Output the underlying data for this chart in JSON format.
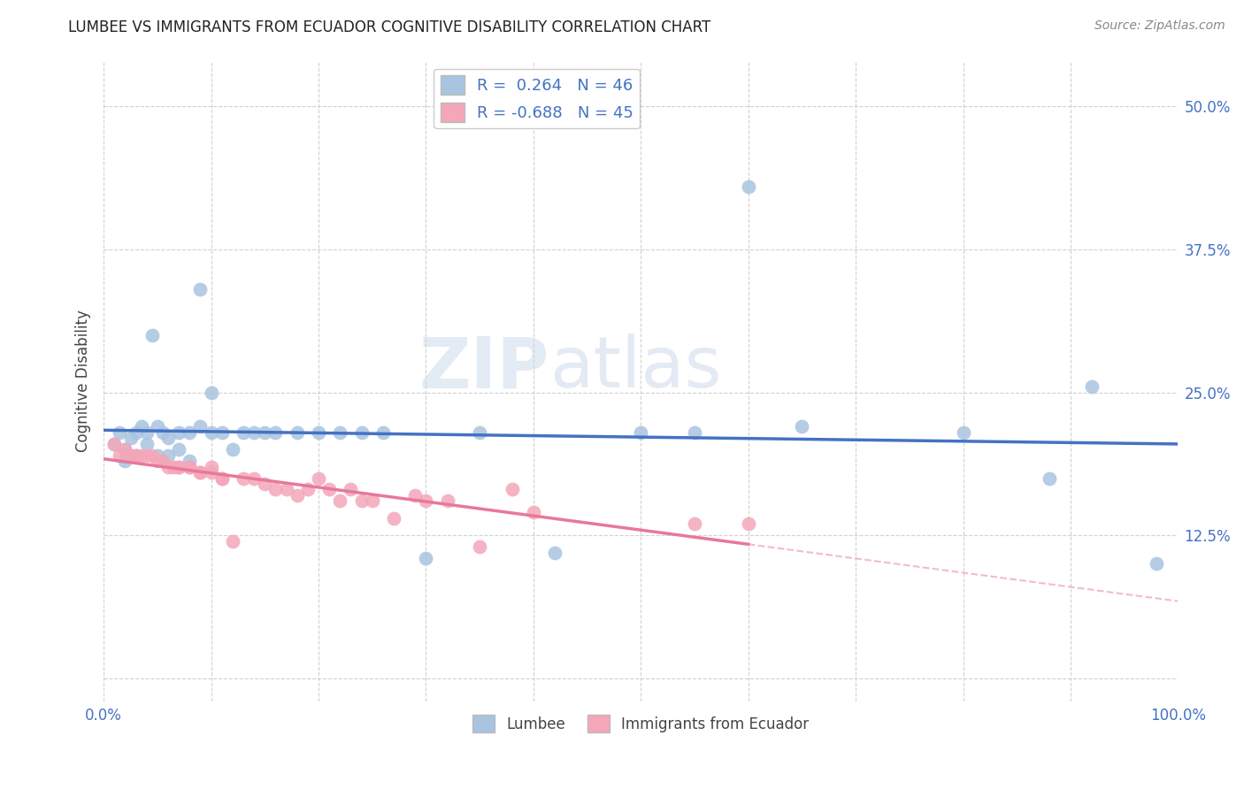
{
  "title": "LUMBEE VS IMMIGRANTS FROM ECUADOR COGNITIVE DISABILITY CORRELATION CHART",
  "source": "Source: ZipAtlas.com",
  "ylabel": "Cognitive Disability",
  "xlim": [
    0,
    1.0
  ],
  "ylim": [
    -0.02,
    0.54
  ],
  "yticks": [
    0.0,
    0.125,
    0.25,
    0.375,
    0.5
  ],
  "ytick_labels": [
    "",
    "12.5%",
    "25.0%",
    "37.5%",
    "50.0%"
  ],
  "xticks": [
    0.0,
    0.1,
    0.2,
    0.3,
    0.4,
    0.5,
    0.6,
    0.7,
    0.8,
    0.9,
    1.0
  ],
  "xtick_labels": [
    "0.0%",
    "",
    "",
    "",
    "",
    "",
    "",
    "",
    "",
    "",
    "100.0%"
  ],
  "lumbee_R": 0.264,
  "lumbee_N": 46,
  "ecuador_R": -0.688,
  "ecuador_N": 45,
  "lumbee_color": "#a8c4e0",
  "ecuador_color": "#f4a7b9",
  "lumbee_line_color": "#4472c4",
  "ecuador_line_color": "#e8789a",
  "watermark_zip": "ZIP",
  "watermark_atlas": "atlas",
  "lumbee_x": [
    0.01,
    0.015,
    0.02,
    0.02,
    0.025,
    0.03,
    0.03,
    0.035,
    0.04,
    0.04,
    0.045,
    0.05,
    0.05,
    0.055,
    0.06,
    0.06,
    0.07,
    0.07,
    0.08,
    0.08,
    0.09,
    0.09,
    0.1,
    0.1,
    0.11,
    0.12,
    0.13,
    0.14,
    0.15,
    0.16,
    0.18,
    0.2,
    0.22,
    0.24,
    0.26,
    0.3,
    0.35,
    0.42,
    0.5,
    0.55,
    0.6,
    0.65,
    0.8,
    0.88,
    0.92,
    0.98
  ],
  "lumbee_y": [
    0.205,
    0.215,
    0.2,
    0.19,
    0.21,
    0.215,
    0.195,
    0.22,
    0.215,
    0.205,
    0.3,
    0.195,
    0.22,
    0.215,
    0.21,
    0.195,
    0.215,
    0.2,
    0.19,
    0.215,
    0.34,
    0.22,
    0.215,
    0.25,
    0.215,
    0.2,
    0.215,
    0.215,
    0.215,
    0.215,
    0.215,
    0.215,
    0.215,
    0.215,
    0.215,
    0.105,
    0.215,
    0.11,
    0.215,
    0.215,
    0.43,
    0.22,
    0.215,
    0.175,
    0.255,
    0.1
  ],
  "ecuador_x": [
    0.01,
    0.015,
    0.02,
    0.025,
    0.03,
    0.035,
    0.04,
    0.045,
    0.05,
    0.055,
    0.06,
    0.065,
    0.07,
    0.07,
    0.08,
    0.08,
    0.09,
    0.09,
    0.1,
    0.1,
    0.11,
    0.11,
    0.12,
    0.13,
    0.14,
    0.15,
    0.16,
    0.17,
    0.18,
    0.19,
    0.2,
    0.21,
    0.22,
    0.23,
    0.24,
    0.25,
    0.27,
    0.29,
    0.3,
    0.32,
    0.35,
    0.38,
    0.4,
    0.55,
    0.6
  ],
  "ecuador_y": [
    0.205,
    0.195,
    0.2,
    0.195,
    0.195,
    0.195,
    0.195,
    0.195,
    0.19,
    0.19,
    0.185,
    0.185,
    0.185,
    0.185,
    0.185,
    0.185,
    0.18,
    0.18,
    0.18,
    0.185,
    0.175,
    0.175,
    0.12,
    0.175,
    0.175,
    0.17,
    0.165,
    0.165,
    0.16,
    0.165,
    0.175,
    0.165,
    0.155,
    0.165,
    0.155,
    0.155,
    0.14,
    0.16,
    0.155,
    0.155,
    0.115,
    0.165,
    0.145,
    0.135,
    0.135
  ]
}
